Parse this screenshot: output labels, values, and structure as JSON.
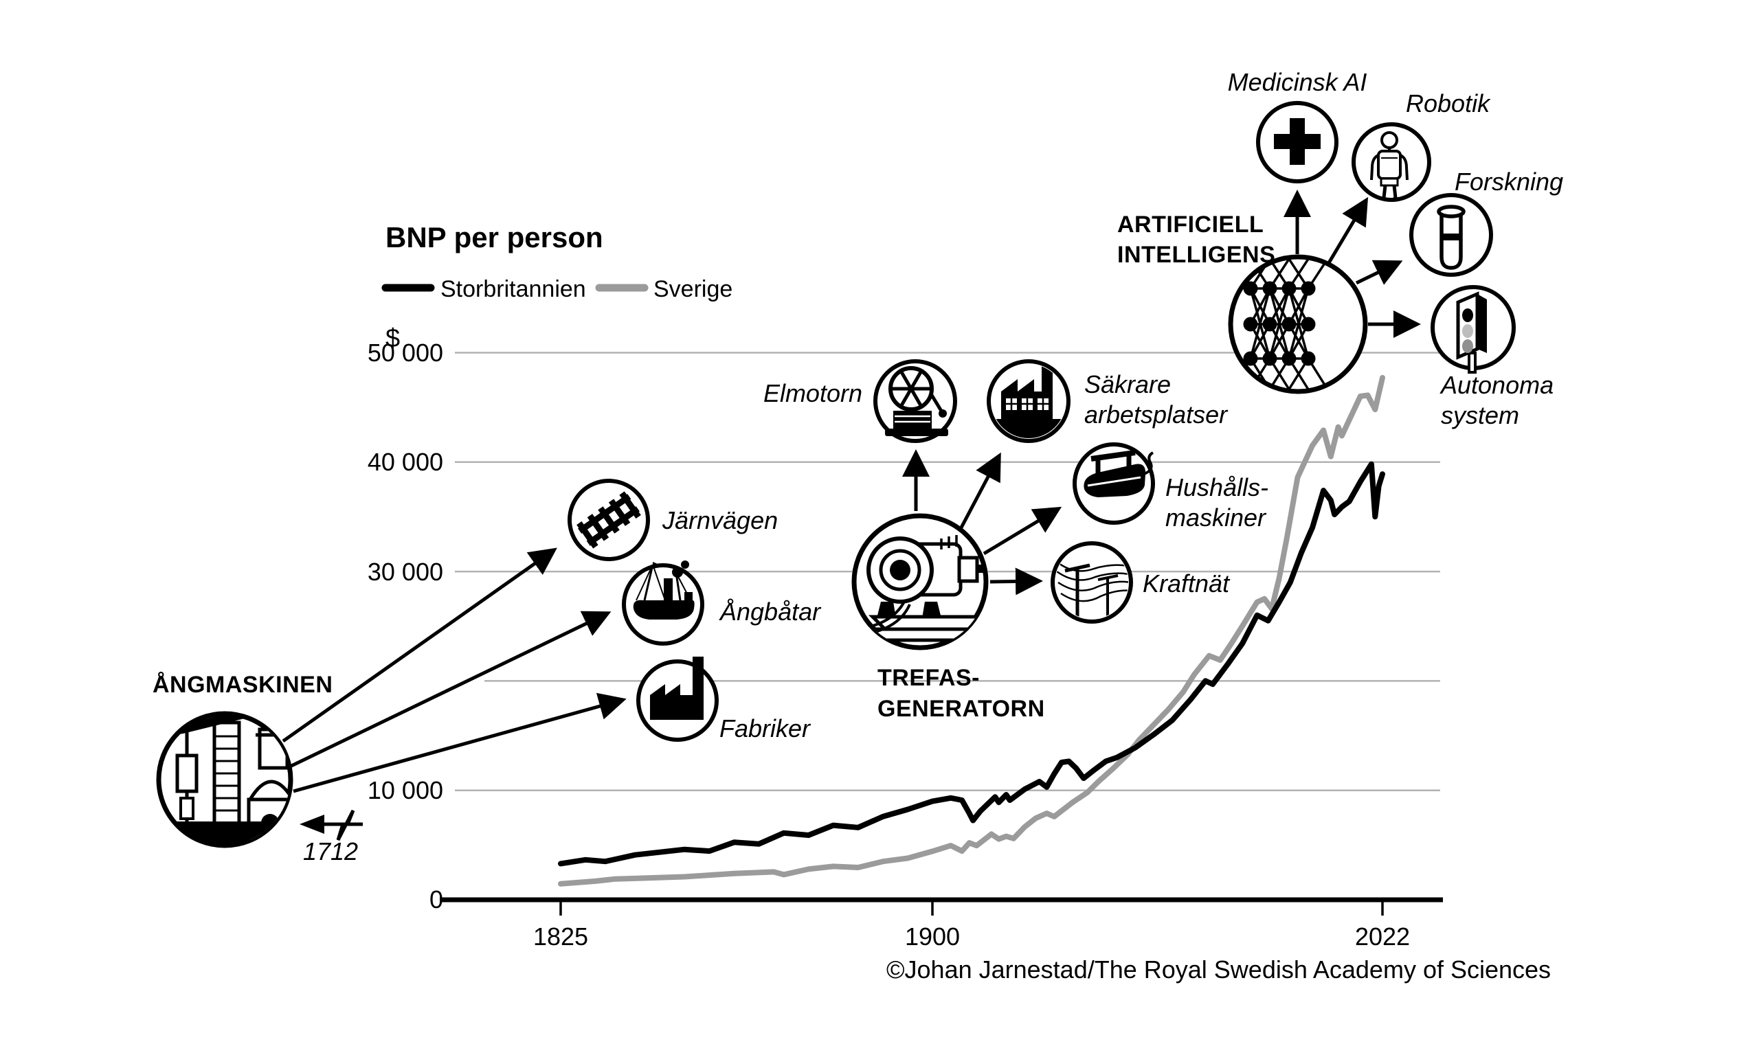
{
  "title": "BNP per person",
  "y_axis_unit": "$",
  "legend": {
    "uk": "Storbritannien",
    "se": "Sverige"
  },
  "colors": {
    "uk": "#000000",
    "se": "#9b9b9b",
    "gridline": "#b2b2b2"
  },
  "y_ticks": [
    "50 000",
    "40 000",
    "30 000",
    "10 000",
    "0"
  ],
  "x_ticks": [
    "1825",
    "1900",
    "2022"
  ],
  "credit": "©Johan Jarnestad/The Royal Swedish Academy of Sciences",
  "steam": {
    "title": "ÅNGMASKINEN",
    "year_label": "1712",
    "labels": {
      "railway": "Järnvägen",
      "steamboats": "Ångbåtar",
      "factories": "Fabriker"
    }
  },
  "generator": {
    "title1": "TREFAS-",
    "title2": "GENERATORN",
    "labels": {
      "electric_motor": "Elmotorn",
      "safer1": "Säkrare",
      "safer2": "arbetsplatser",
      "household1": "Hushålls-",
      "household2": "maskiner",
      "grid": "Kraftnät"
    }
  },
  "ai": {
    "title1": "ARTIFICIELL",
    "title2": "INTELLIGENS",
    "labels": {
      "medical": "Medicinsk AI",
      "robotics": "Robotik",
      "research": "Forskning",
      "autonomous1": "Autonoma",
      "autonomous2": "system"
    }
  },
  "chart_data": {
    "type": "line",
    "title": "BNP per person",
    "unit": "$",
    "ylim": [
      0,
      50000
    ],
    "y_gridlines": [
      10000,
      20000,
      30000,
      40000,
      50000
    ],
    "y_tick_labels": [
      50000,
      40000,
      30000,
      10000,
      0
    ],
    "x_ticks": [
      1825,
      1900,
      2022
    ],
    "grid": true,
    "legend_position": "top-left",
    "annotations": [
      "ÅNGMASKINEN 1712",
      "TREFAS-GENERATORN",
      "ARTIFICIELL INTELLIGENS"
    ],
    "series": [
      {
        "name": "Storbritannien",
        "color": "#000000",
        "points": [
          [
            1825,
            3300
          ],
          [
            1830,
            3650
          ],
          [
            1834,
            3500
          ],
          [
            1840,
            4100
          ],
          [
            1845,
            4350
          ],
          [
            1850,
            4600
          ],
          [
            1855,
            4450
          ],
          [
            1860,
            5250
          ],
          [
            1865,
            5100
          ],
          [
            1870,
            6100
          ],
          [
            1875,
            5900
          ],
          [
            1880,
            6800
          ],
          [
            1885,
            6600
          ],
          [
            1890,
            7600
          ],
          [
            1895,
            8250
          ],
          [
            1900,
            9000
          ],
          [
            1905,
            9300
          ],
          [
            1908,
            9100
          ],
          [
            1910,
            7900
          ],
          [
            1911,
            7250
          ],
          [
            1913,
            8100
          ],
          [
            1917,
            9400
          ],
          [
            1918,
            8900
          ],
          [
            1920,
            9600
          ],
          [
            1921,
            9100
          ],
          [
            1925,
            10100
          ],
          [
            1929,
            10800
          ],
          [
            1931,
            10300
          ],
          [
            1933,
            11500
          ],
          [
            1935,
            12550
          ],
          [
            1937,
            12650
          ],
          [
            1939,
            12000
          ],
          [
            1941,
            11100
          ],
          [
            1944,
            11900
          ],
          [
            1947,
            12650
          ],
          [
            1950,
            13000
          ],
          [
            1955,
            13900
          ],
          [
            1960,
            15100
          ],
          [
            1965,
            16400
          ],
          [
            1970,
            18300
          ],
          [
            1974,
            20000
          ],
          [
            1976,
            19700
          ],
          [
            1980,
            21500
          ],
          [
            1984,
            23400
          ],
          [
            1988,
            26000
          ],
          [
            1991,
            25500
          ],
          [
            1994,
            27200
          ],
          [
            1997,
            29000
          ],
          [
            2000,
            31700
          ],
          [
            2003,
            34000
          ],
          [
            2006,
            37400
          ],
          [
            2008,
            36500
          ],
          [
            2009,
            35200
          ],
          [
            2011,
            35900
          ],
          [
            2013,
            36400
          ],
          [
            2016,
            38200
          ],
          [
            2019,
            39800
          ],
          [
            2020,
            35000
          ],
          [
            2021,
            37800
          ],
          [
            2022,
            38900
          ]
        ]
      },
      {
        "name": "Sverige",
        "color": "#9b9b9b",
        "points": [
          [
            1825,
            1460
          ],
          [
            1832,
            1700
          ],
          [
            1836,
            1900
          ],
          [
            1840,
            1950
          ],
          [
            1850,
            2100
          ],
          [
            1860,
            2400
          ],
          [
            1868,
            2550
          ],
          [
            1870,
            2300
          ],
          [
            1875,
            2800
          ],
          [
            1880,
            3050
          ],
          [
            1885,
            2950
          ],
          [
            1890,
            3500
          ],
          [
            1895,
            3800
          ],
          [
            1900,
            4430
          ],
          [
            1905,
            4950
          ],
          [
            1908,
            4450
          ],
          [
            1910,
            5200
          ],
          [
            1912,
            4950
          ],
          [
            1916,
            6000
          ],
          [
            1918,
            5550
          ],
          [
            1920,
            5800
          ],
          [
            1922,
            5600
          ],
          [
            1925,
            6650
          ],
          [
            1928,
            7450
          ],
          [
            1931,
            7900
          ],
          [
            1933,
            7600
          ],
          [
            1938,
            8900
          ],
          [
            1942,
            9800
          ],
          [
            1945,
            10800
          ],
          [
            1949,
            12000
          ],
          [
            1953,
            13300
          ],
          [
            1956,
            14600
          ],
          [
            1960,
            16000
          ],
          [
            1964,
            17400
          ],
          [
            1968,
            19000
          ],
          [
            1971,
            20600
          ],
          [
            1975,
            22300
          ],
          [
            1978,
            21900
          ],
          [
            1981,
            23400
          ],
          [
            1984,
            25000
          ],
          [
            1988,
            27200
          ],
          [
            1990,
            27500
          ],
          [
            1992,
            26600
          ],
          [
            1994,
            29400
          ],
          [
            1996,
            32900
          ],
          [
            1999,
            38600
          ],
          [
            2003,
            41500
          ],
          [
            2006,
            42900
          ],
          [
            2008,
            40500
          ],
          [
            2010,
            43200
          ],
          [
            2011,
            42400
          ],
          [
            2016,
            46000
          ],
          [
            2018,
            46100
          ],
          [
            2020,
            44800
          ],
          [
            2022,
            47700
          ]
        ]
      }
    ]
  }
}
